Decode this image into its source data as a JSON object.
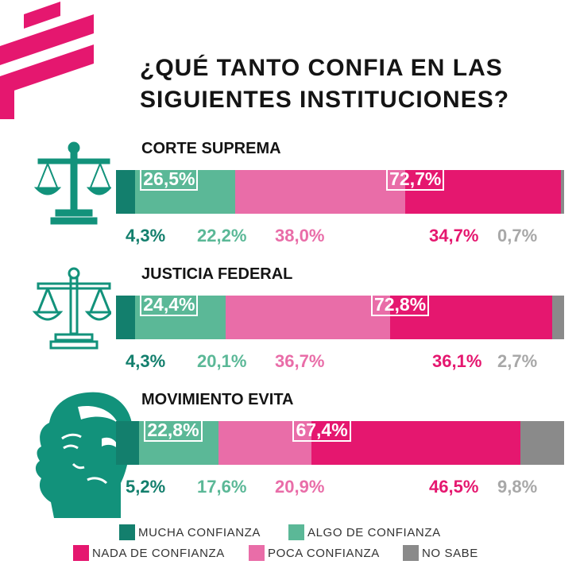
{
  "title_lines": [
    "¿QUÉ TANTO CONFIA EN LAS",
    "SIGUIENTES INSTITUCIONES?"
  ],
  "colors": {
    "mucha": "#137f6d",
    "algo": "#5bb897",
    "poca": "#e96da8",
    "nada": "#e5176f",
    "nosabe": "#8a8a8a",
    "brand": "#e5176f"
  },
  "icons": [
    "scales-icon",
    "scales-outline-icon",
    "evita-portrait-icon",
    "brand-logo-icon"
  ],
  "chart_data": {
    "type": "bar",
    "stacked": true,
    "orientation": "horizontal",
    "categories": [
      "CORTE SUPREMA",
      "JUSTICIA FEDERAL",
      "MOVIMIENTO EVITA"
    ],
    "series": [
      {
        "name": "MUCHA CONFIANZA",
        "values": [
          4.3,
          4.3,
          5.2
        ],
        "labels": [
          "4,3%",
          "4,3%",
          "5,2%"
        ]
      },
      {
        "name": "ALGO DE CONFIANZA",
        "values": [
          22.2,
          20.1,
          17.6
        ],
        "labels": [
          "22,2%",
          "20,1%",
          "17,6%"
        ]
      },
      {
        "name": "POCA CONFIANZA",
        "values": [
          38.0,
          36.7,
          20.9
        ],
        "labels": [
          "38,0%",
          "36,7%",
          "20,9%"
        ]
      },
      {
        "name": "NADA DE CONFIANZA",
        "values": [
          34.7,
          36.1,
          46.5
        ],
        "labels": [
          "34,7%",
          "36,1%",
          "46,5%"
        ]
      },
      {
        "name": "NO SABE",
        "values": [
          0.7,
          2.7,
          9.8
        ],
        "labels": [
          "0,7%",
          "2,7%",
          "9,8%"
        ]
      }
    ],
    "totals_confianza": [
      26.5,
      24.4,
      22.8
    ],
    "totals_confianza_labels": [
      "26,5%",
      "24,4%",
      "22,8%"
    ],
    "totals_desconfianza": [
      72.7,
      72.8,
      67.4
    ],
    "totals_desconfianza_labels": [
      "72,7%",
      "72,8%",
      "67,4%"
    ],
    "legend": [
      "MUCHA CONFIANZA",
      "ALGO DE CONFIANZA",
      "NADA DE CONFIANZA",
      "POCA CONFIANZA",
      "NO SABE"
    ],
    "legend_placement": "bottom"
  }
}
